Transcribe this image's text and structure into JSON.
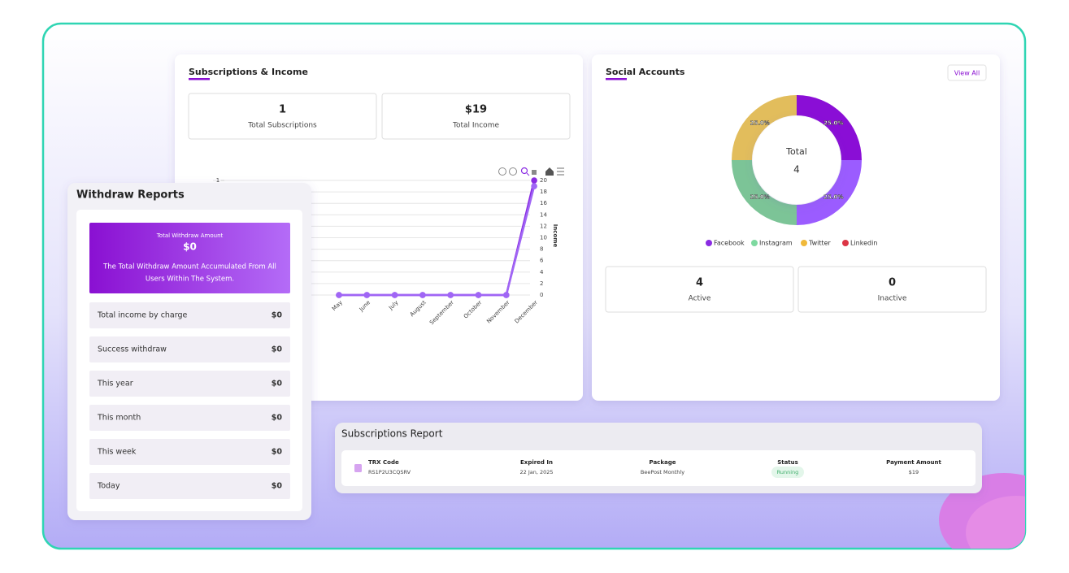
{
  "subscriptions_income": {
    "title": "Subscriptions & Income",
    "stats": [
      {
        "value": "1",
        "label": "Total Subscriptions"
      },
      {
        "value": "$19",
        "label": "Total Income"
      }
    ],
    "chart": {
      "type": "line",
      "categories": [
        "May",
        "June",
        "July",
        "August",
        "September",
        "October",
        "November",
        "December"
      ],
      "series": [
        {
          "color": "#8a2be2",
          "values": [
            0,
            0,
            0,
            0,
            0,
            0,
            0,
            1
          ]
        },
        {
          "color": "#a066f5",
          "axis": "y2",
          "values": [
            0,
            0,
            0,
            0,
            0,
            0,
            0,
            19
          ]
        }
      ],
      "ylim": [
        0,
        1
      ],
      "yticks": [
        1
      ],
      "y2lim": [
        0,
        20
      ],
      "y2ticks": [
        0,
        2,
        4,
        6,
        8,
        10,
        12,
        14,
        16,
        18,
        20
      ],
      "y2label": "Income",
      "grid": true
    }
  },
  "social_accounts": {
    "title": "Social Accounts",
    "button": "View All",
    "chart": {
      "type": "donut",
      "categories": [
        "Facebook",
        "Instagram",
        "Twitter",
        "Linkedin"
      ],
      "values": [
        25,
        25,
        25,
        25
      ],
      "value_labels": [
        "25.0%",
        "25.0%",
        "25.0%",
        "25.0%"
      ],
      "colors": [
        "#8a0ed6",
        "#9b5cff",
        "#7cc497",
        "#e2bd5c"
      ],
      "legend_colors": [
        "#8a2be2",
        "#7ed9a0",
        "#f0b93a",
        "#dc3545"
      ],
      "center_label": "Total",
      "center_value": 4
    },
    "stats": [
      {
        "value": "4",
        "label": "Active"
      },
      {
        "value": "0",
        "label": "Inactive"
      }
    ]
  },
  "withdraw_reports": {
    "title": "Withdraw Reports",
    "highlight": {
      "label": "Total Withdraw Amount",
      "amount": "$0",
      "description": [
        "The Total Withdraw Amount Accumulated From All",
        "Users Within The System."
      ]
    },
    "rows": [
      [
        "Total income by charge",
        "$0"
      ],
      [
        "Success withdraw",
        "$0"
      ],
      [
        "This year",
        "$0"
      ],
      [
        "This month",
        "$0"
      ],
      [
        "This week",
        "$0"
      ],
      [
        "Today",
        "$0"
      ]
    ]
  },
  "subscriptions_report": {
    "title": "Subscriptions Report",
    "columns": [
      "TRX Code",
      "Expired In",
      "Package",
      "Status",
      "Payment Amount"
    ],
    "rows": [
      [
        "RS1P2U3CQSRV",
        "22 Jan, 2025",
        "BeePost Monthly",
        "Running",
        "$19"
      ]
    ]
  }
}
